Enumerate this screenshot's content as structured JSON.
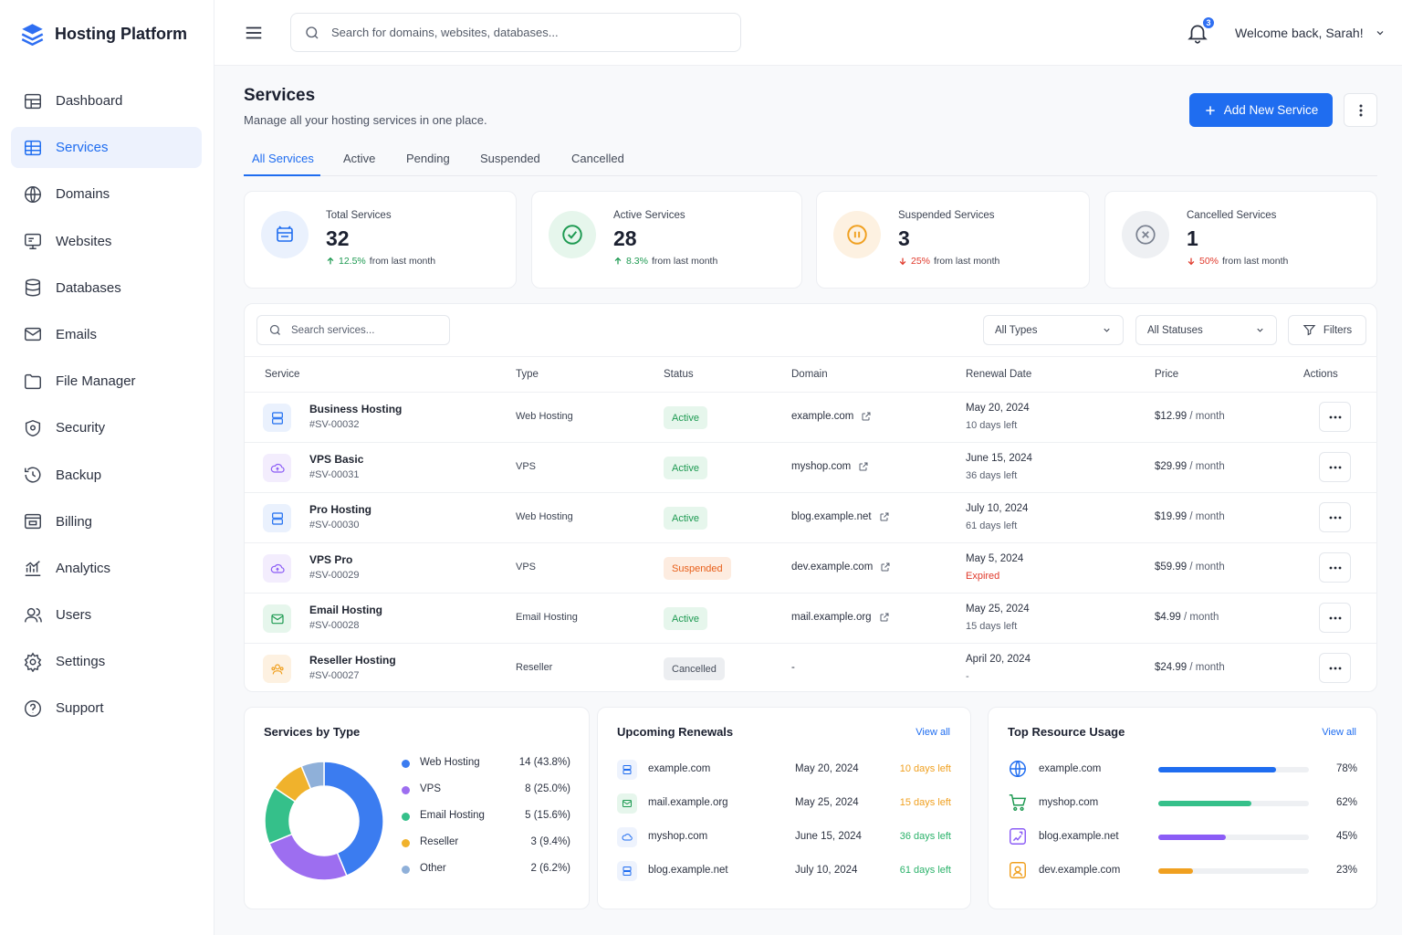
{
  "app": {
    "name": "Hosting Platform"
  },
  "nav": [
    {
      "label": "Dashboard",
      "icon": "dashboard-icon"
    },
    {
      "label": "Services",
      "icon": "server-icon",
      "active": true
    },
    {
      "label": "Domains",
      "icon": "globe-icon"
    },
    {
      "label": "Websites",
      "icon": "monitor-icon"
    },
    {
      "label": "Databases",
      "icon": "database-icon"
    },
    {
      "label": "Emails",
      "icon": "mail-icon"
    },
    {
      "label": "File Manager",
      "icon": "folder-icon"
    },
    {
      "label": "Security",
      "icon": "shield-icon"
    },
    {
      "label": "Backup",
      "icon": "backup-icon"
    },
    {
      "label": "Billing",
      "icon": "wallet-icon"
    },
    {
      "label": "Analytics",
      "icon": "analytics-icon"
    },
    {
      "label": "Users",
      "icon": "users-icon"
    },
    {
      "label": "Settings",
      "icon": "gear-icon"
    },
    {
      "label": "Support",
      "icon": "help-icon"
    }
  ],
  "topbar": {
    "search_placeholder": "Search for domains, websites, databases...",
    "notifications": "3",
    "welcome": "Welcome back, Sarah!"
  },
  "page": {
    "title": "Services",
    "subtitle": "Manage all your hosting services in one place.",
    "add_button": "Add New Service"
  },
  "tabs": [
    "All Services",
    "Active",
    "Pending",
    "Suspended",
    "Cancelled"
  ],
  "stats": [
    {
      "label": "Total Services",
      "value": "32",
      "change": "12.5%",
      "suffix": "from last month",
      "trend": "up"
    },
    {
      "label": "Active Services",
      "value": "28",
      "change": "8.3%",
      "suffix": "from last month",
      "trend": "up"
    },
    {
      "label": "Suspended Services",
      "value": "3",
      "change": "25%",
      "suffix": "from last month",
      "trend": "down"
    },
    {
      "label": "Cancelled Services",
      "value": "1",
      "change": "50%",
      "suffix": "from last month",
      "trend": "down"
    }
  ],
  "table": {
    "search_placeholder": "Search services...",
    "type_filter": "All Types",
    "status_filter": "All Statuses",
    "filters_label": "Filters",
    "columns": [
      "Service",
      "Type",
      "Status",
      "Domain",
      "Renewal Date",
      "Price",
      "Actions"
    ],
    "rows": [
      {
        "name": "Business Hosting",
        "id": "#SV-00032",
        "type": "Web Hosting",
        "status": "Active",
        "domain": "example.com",
        "date": "May 20, 2024",
        "left": "10 days left",
        "price": "$12.99",
        "per": "/ month",
        "icon": "server-icon"
      },
      {
        "name": "VPS Basic",
        "id": "#SV-00031",
        "type": "VPS",
        "status": "Active",
        "domain": "myshop.com",
        "date": "June 15, 2024",
        "left": "36 days left",
        "price": "$29.99",
        "per": "/ month",
        "icon": "cloud-icon"
      },
      {
        "name": "Pro Hosting",
        "id": "#SV-00030",
        "type": "Web Hosting",
        "status": "Active",
        "domain": "blog.example.net",
        "date": "July 10, 2024",
        "left": "61 days left",
        "price": "$19.99",
        "per": "/ month",
        "icon": "server-icon"
      },
      {
        "name": "VPS Pro",
        "id": "#SV-00029",
        "type": "VPS",
        "status": "Suspended",
        "domain": "dev.example.com",
        "date": "May 5, 2024",
        "left": "Expired",
        "price": "$59.99",
        "per": "/ month",
        "icon": "cloud-icon"
      },
      {
        "name": "Email Hosting",
        "id": "#SV-00028",
        "type": "Email Hosting",
        "status": "Active",
        "domain": "mail.example.org",
        "date": "May 25, 2024",
        "left": "15 days left",
        "price": "$4.99",
        "per": "/ month",
        "icon": "mail-icon"
      },
      {
        "name": "Reseller Hosting",
        "id": "#SV-00027",
        "type": "Reseller",
        "status": "Cancelled",
        "domain": "-",
        "date": "April 20, 2024",
        "left": "-",
        "price": "$24.99",
        "per": "/ month",
        "icon": "users-icon"
      }
    ]
  },
  "services_by_type": {
    "title": "Services by Type"
  },
  "chart_data": {
    "type": "pie",
    "title": "Services by Type",
    "categories": [
      "Web Hosting",
      "VPS",
      "Email Hosting",
      "Reseller",
      "Other"
    ],
    "values": [
      14,
      8,
      5,
      3,
      2
    ],
    "labels": [
      "14 (43.8%)",
      "8 (25.0%)",
      "5 (15.6%)",
      "3 (9.4%)",
      "2 (6.2%)"
    ],
    "colors": [
      "#3b7cf0",
      "#9d6ef0",
      "#35c08a",
      "#f0b22c",
      "#8fb0d9"
    ],
    "donut": true,
    "legend": "right"
  },
  "renewals": {
    "title": "Upcoming Renewals",
    "view_all": "View all",
    "items": [
      {
        "domain": "example.com",
        "date": "May 20, 2024",
        "left": "10 days left",
        "color": "#f0a020",
        "icon": "server-icon"
      },
      {
        "domain": "mail.example.org",
        "date": "May 25, 2024",
        "left": "15 days left",
        "color": "#f0a020",
        "icon": "mail-icon"
      },
      {
        "domain": "myshop.com",
        "date": "June 15, 2024",
        "left": "36 days left",
        "color": "#2bb26a",
        "icon": "cloud-icon"
      },
      {
        "domain": "blog.example.net",
        "date": "July 10, 2024",
        "left": "61 days left",
        "color": "#2bb26a",
        "icon": "server-icon"
      }
    ]
  },
  "resources": {
    "title": "Top Resource Usage",
    "view_all": "View all",
    "items": [
      {
        "domain": "example.com",
        "usage": 78,
        "label": "78%",
        "color": "#1f6df0",
        "icon": "globe-icon"
      },
      {
        "domain": "myshop.com",
        "usage": 62,
        "label": "62%",
        "color": "#35c08a",
        "icon": "cart-icon"
      },
      {
        "domain": "blog.example.net",
        "usage": 45,
        "label": "45%",
        "color": "#8b5cf6",
        "icon": "blog-icon"
      },
      {
        "domain": "dev.example.com",
        "usage": 23,
        "label": "23%",
        "color": "#f0a020",
        "icon": "dev-icon"
      }
    ]
  }
}
